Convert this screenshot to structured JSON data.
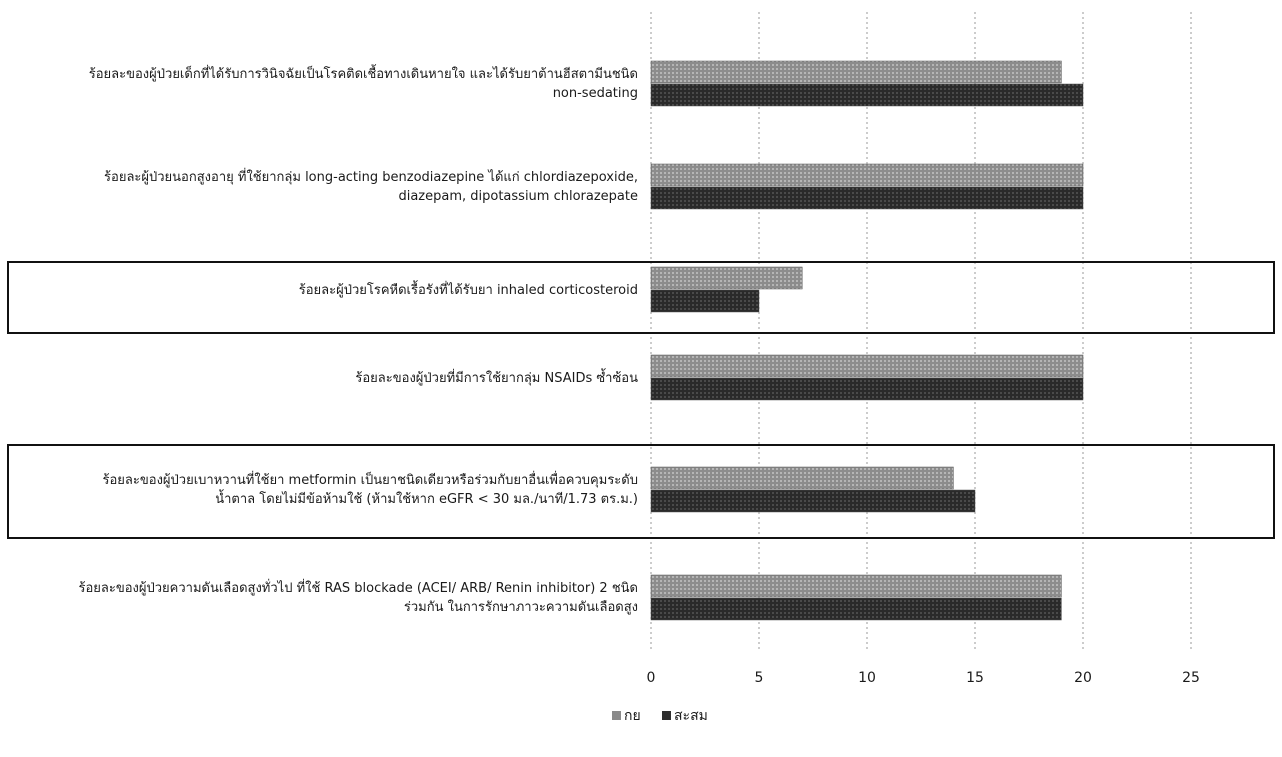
{
  "chart_data": {
    "type": "bar",
    "orientation": "horizontal",
    "categories": [
      "ร้อยละของผู้ป่วยเด็กที่ได้รับการวินิจฉัยเป็นโรคติดเชื้อทางเดินหายใจ และได้รับยาต้านฮีสตามีนชนิด non-sedating",
      "ร้อยละผู้ป่วยนอกสูงอายุ ที่ใช้ยากลุ่ม long-acting benzodiazepine ได้แก่ chlordiazepoxide, diazepam, dipotassium chlorazepate",
      "ร้อยละผู้ป่วยโรคหืดเรื้อรังที่ได้รับยา inhaled corticosteroid",
      "ร้อยละของผู้ป่วยที่มีการใช้ยากลุ่ม NSAIDs ซ้ำซ้อน",
      "ร้อยละของผู้ป่วยเบาหวานที่ใช้ยา metformin เป็นยาชนิดเดียวหรือร่วมกับยาอื่นเพื่อควบคุมระดับน้ำตาล โดยไม่มีข้อห้ามใช้ (ห้ามใช้หาก eGFR < 30 มล./นาที/1.73 ตร.ม.)",
      "ร้อยละของผู้ป่วยความดันเลือดสูงทั่วไป ที่ใช้ RAS blockade (ACEI/ ARB/ Renin inhibitor) 2 ชนิดร่วมกัน ในการรักษาภาวะความดันเลือดสูง"
    ],
    "highlighted": [
      false,
      false,
      true,
      false,
      true,
      false
    ],
    "series": [
      {
        "name": "กย",
        "values": [
          19,
          20,
          7,
          20,
          14,
          19
        ],
        "color": "#8a8a8a"
      },
      {
        "name": "สะสม",
        "values": [
          20,
          20,
          5,
          20,
          15,
          19
        ],
        "color": "#2e2e2e"
      }
    ],
    "xlim": [
      0,
      25
    ],
    "xticks": [
      "0",
      "5",
      "10",
      "15",
      "20",
      "25"
    ],
    "grid": "vertical-dashed",
    "legend": "bottom-center",
    "title": "",
    "xlabel": "",
    "ylabel": ""
  }
}
